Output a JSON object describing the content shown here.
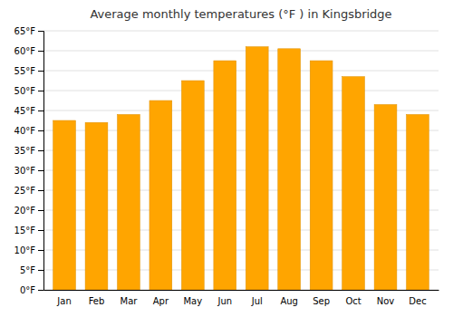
{
  "chart_data": {
    "type": "bar",
    "title": "Average monthly temperatures (°F ) in Kingsbridge",
    "categories": [
      "Jan",
      "Feb",
      "Mar",
      "Apr",
      "May",
      "Jun",
      "Jul",
      "Aug",
      "Sep",
      "Oct",
      "Nov",
      "Dec"
    ],
    "values": [
      42.5,
      42.0,
      44.0,
      47.5,
      52.5,
      57.5,
      61.0,
      60.5,
      57.5,
      53.5,
      46.5,
      44.0
    ],
    "color": "#FFA500",
    "ylim": [
      0,
      65
    ],
    "yticks": [
      {
        "value": 0,
        "label": "0°F"
      },
      {
        "value": 5,
        "label": "5°F"
      },
      {
        "value": 10,
        "label": "10°F"
      },
      {
        "value": 15,
        "label": "15°F"
      },
      {
        "value": 20,
        "label": "20°F"
      },
      {
        "value": 25,
        "label": "25°F"
      },
      {
        "value": 30,
        "label": "30°F"
      },
      {
        "value": 35,
        "label": "35°F"
      },
      {
        "value": 40,
        "label": "40°F"
      },
      {
        "value": 45,
        "label": "45°F"
      },
      {
        "value": 50,
        "label": "50°F"
      },
      {
        "value": 55,
        "label": "55°F"
      },
      {
        "value": 60,
        "label": "60°F"
      },
      {
        "value": 65,
        "label": "65°F"
      }
    ],
    "grid": true
  }
}
